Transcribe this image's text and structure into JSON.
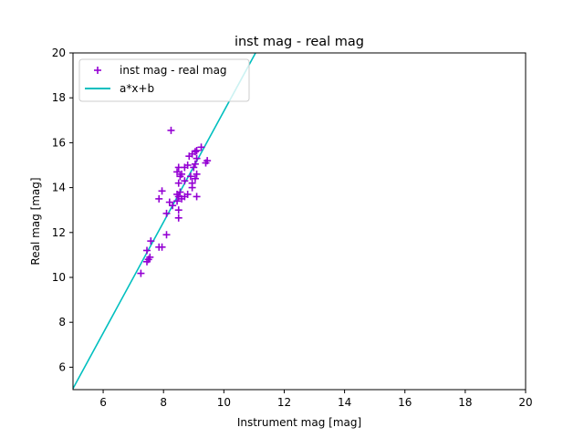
{
  "chart_data": {
    "type": "scatter",
    "title": "inst mag - real mag",
    "xlabel": "Instrument mag [mag]",
    "ylabel": "Real mag [mag]",
    "xlim": [
      5,
      20
    ],
    "ylim": [
      5,
      20
    ],
    "xticks": [
      6,
      8,
      10,
      12,
      14,
      16,
      18,
      20
    ],
    "yticks": [
      6,
      8,
      10,
      12,
      14,
      16,
      18,
      20
    ],
    "grid": false,
    "legend_position": "upper-left",
    "series": [
      {
        "name": "inst mag - real mag",
        "kind": "scatter",
        "marker": "plus",
        "color": "#9400d3",
        "points": [
          [
            7.25,
            10.18
          ],
          [
            7.45,
            10.7
          ],
          [
            7.55,
            10.9
          ],
          [
            7.5,
            10.8
          ],
          [
            7.45,
            11.2
          ],
          [
            7.58,
            11.62
          ],
          [
            7.85,
            11.35
          ],
          [
            7.95,
            11.35
          ],
          [
            8.1,
            11.9
          ],
          [
            8.1,
            12.85
          ],
          [
            8.2,
            13.35
          ],
          [
            8.3,
            13.2
          ],
          [
            7.85,
            13.5
          ],
          [
            7.95,
            13.85
          ],
          [
            8.25,
            16.55
          ],
          [
            8.5,
            12.65
          ],
          [
            8.5,
            13.0
          ],
          [
            8.45,
            13.4
          ],
          [
            8.5,
            13.6
          ],
          [
            8.55,
            13.8
          ],
          [
            8.45,
            13.7
          ],
          [
            8.6,
            13.5
          ],
          [
            8.7,
            13.6
          ],
          [
            8.8,
            13.7
          ],
          [
            8.5,
            14.2
          ],
          [
            8.55,
            14.5
          ],
          [
            8.5,
            14.9
          ],
          [
            8.45,
            14.7
          ],
          [
            8.6,
            14.6
          ],
          [
            8.7,
            14.9
          ],
          [
            8.8,
            15.0
          ],
          [
            8.85,
            15.4
          ],
          [
            8.95,
            15.5
          ],
          [
            9.05,
            15.6
          ],
          [
            9.1,
            15.65
          ],
          [
            9.25,
            15.8
          ],
          [
            9.1,
            15.3
          ],
          [
            9.05,
            15.05
          ],
          [
            9.0,
            14.9
          ],
          [
            8.9,
            14.5
          ],
          [
            8.95,
            14.2
          ],
          [
            8.95,
            14.0
          ],
          [
            9.05,
            14.4
          ],
          [
            9.1,
            14.6
          ],
          [
            9.4,
            15.1
          ],
          [
            9.45,
            15.2
          ],
          [
            9.1,
            13.6
          ],
          [
            8.7,
            14.3
          ]
        ]
      },
      {
        "name": "a*x+b",
        "kind": "line",
        "color": "#00bfbf",
        "line_points": [
          [
            5.0,
            5.05
          ],
          [
            11.05,
            20.0
          ]
        ]
      }
    ]
  }
}
